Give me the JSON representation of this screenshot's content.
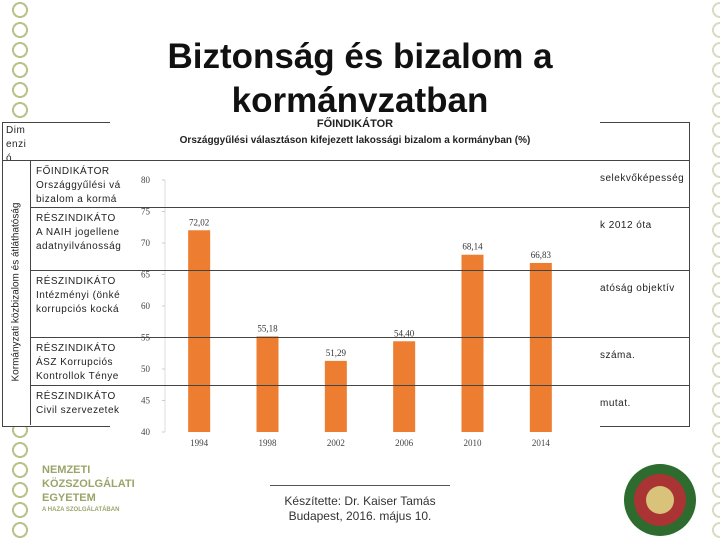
{
  "slide": {
    "title": "Biztonság és bizalom a kormányzatban",
    "header_cell": [
      "Dim",
      "enzi",
      "ó"
    ],
    "vertical_label": "Kormányzati közbizalom és átláthatóság",
    "rows": [
      {
        "lines": [
          "FŐINDIKÁTOR",
          "Országgyűlési vá",
          "bizalom a kormá"
        ],
        "right": "selekvőképesség"
      },
      {
        "lines": [
          "RÉSZINDIKÁTO",
          "A NAIH jogellene",
          "adatnyilvánosság"
        ],
        "right": "k 2012 óta"
      },
      {
        "lines": [
          "RÉSZINDIKÁTO",
          "Intézményi (önké",
          "korrupciós kocká"
        ],
        "right": "atóság objektív"
      },
      {
        "lines": [
          "RÉSZINDIKÁTO",
          "ÁSZ Korrupciós",
          "Kontrollok Ténye"
        ],
        "right": "száma."
      },
      {
        "lines": [
          "RÉSZINDIKÁTO",
          "Civil szervezetek"
        ],
        "right": "mutat."
      }
    ],
    "logo": [
      "NEMZETI",
      "KÖZSZOLGÁLATI",
      "EGYETEM",
      "A HAZA SZOLGÁLATÁBAN"
    ],
    "footer": [
      "Készítette: Dr. Kaiser Tamás",
      "Budapest, 2016. május 10."
    ]
  },
  "chart_data": {
    "type": "bar",
    "title": "FŐINDIKÁTOR",
    "subtitle": "Országgyűlési választáson kifejezett lakossági bizalom a kormányban (%)",
    "categories": [
      "1994",
      "1998",
      "2002",
      "2006",
      "2010",
      "2014"
    ],
    "values": [
      72.02,
      55.18,
      51.29,
      54.4,
      68.14,
      66.83
    ],
    "value_labels": [
      "72,02",
      "55,18",
      "51,29",
      "54,40",
      "68,14",
      "66,83"
    ],
    "color": "#ed7d31",
    "ylim": [
      40,
      80
    ],
    "yticks": [
      40,
      45,
      50,
      55,
      60,
      65,
      70,
      75,
      80
    ],
    "grid": false
  }
}
